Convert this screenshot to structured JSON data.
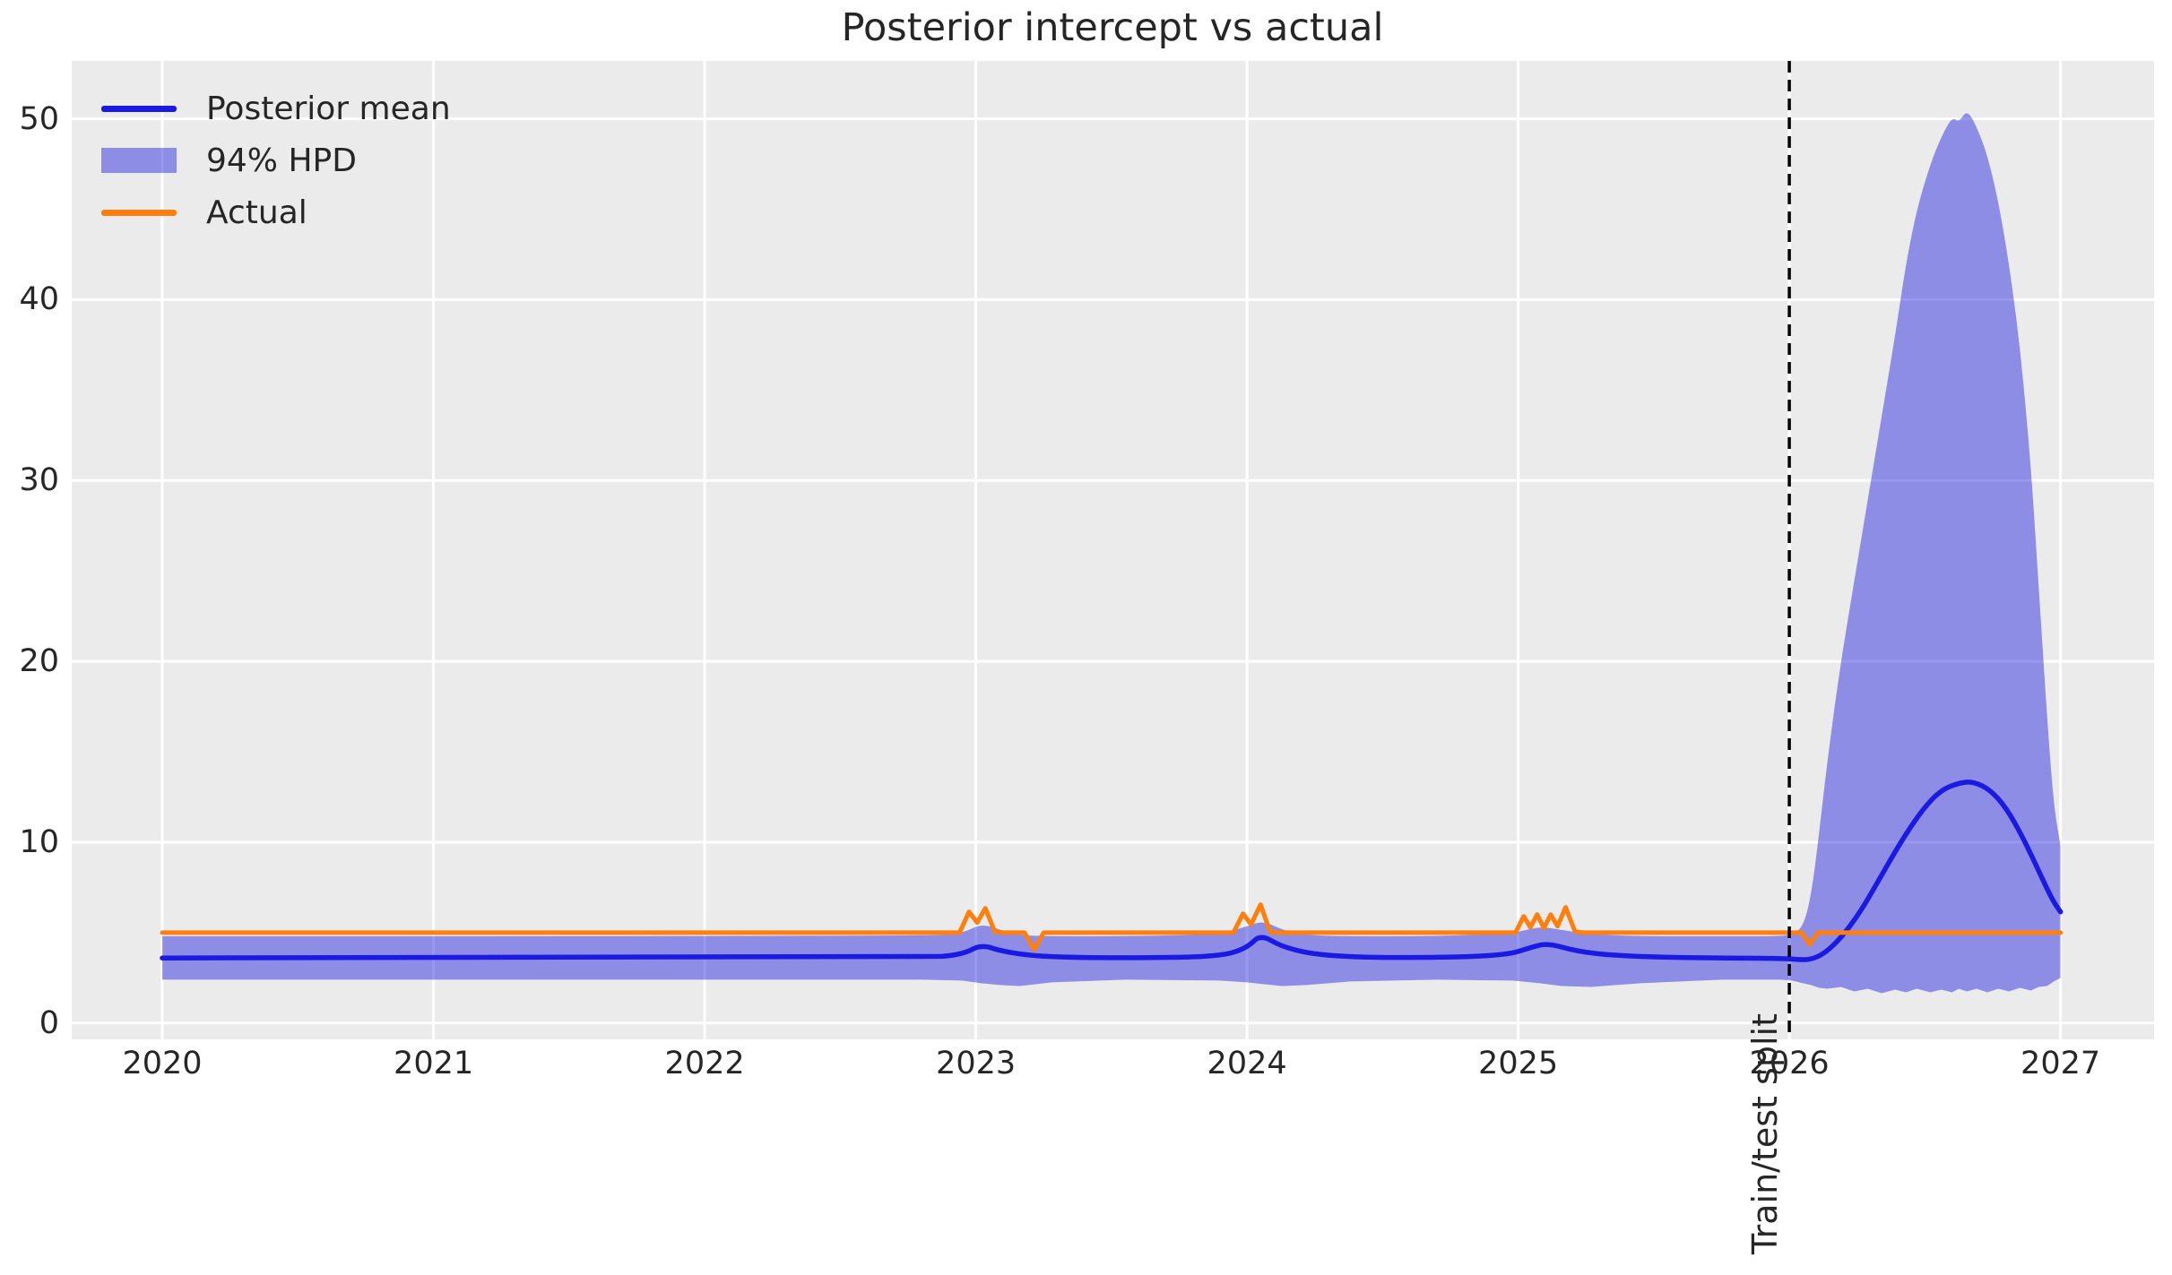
{
  "chart_data": {
    "type": "line",
    "title": "Posterior intercept vs actual",
    "xlabel": "",
    "ylabel": "",
    "x_ticks": [
      2020,
      2021,
      2022,
      2023,
      2024,
      2025,
      2026,
      2027
    ],
    "y_ticks": [
      0,
      10,
      20,
      30,
      40,
      50
    ],
    "xlim": [
      2019.666,
      2027.345
    ],
    "ylim": [
      -0.9,
      53.2
    ],
    "grid": true,
    "legend_position": "upper left",
    "colors": {
      "plot_bg": "#ebebeb",
      "grid": "#ffffff",
      "text": "#262626",
      "split_line": "#000000"
    },
    "legend": [
      {
        "label": "Posterior mean",
        "swatch": "line"
      },
      {
        "label": "94% HPD",
        "swatch": "patch"
      },
      {
        "label": "Actual",
        "swatch": "line"
      }
    ],
    "series": [
      {
        "name": "Posterior mean",
        "color": "#1a1ae0",
        "smooth": true,
        "width": 5.5,
        "points": [
          [
            2020.0,
            3.6
          ],
          [
            2022.8,
            3.6
          ],
          [
            2022.95,
            3.78
          ],
          [
            2023.02,
            4.35
          ],
          [
            2023.1,
            3.95
          ],
          [
            2023.25,
            3.65
          ],
          [
            2023.6,
            3.6
          ],
          [
            2023.9,
            3.68
          ],
          [
            2024.0,
            4.15
          ],
          [
            2024.05,
            4.92
          ],
          [
            2024.13,
            4.2
          ],
          [
            2024.28,
            3.7
          ],
          [
            2024.6,
            3.6
          ],
          [
            2024.95,
            3.72
          ],
          [
            2025.05,
            4.2
          ],
          [
            2025.11,
            4.42
          ],
          [
            2025.22,
            3.95
          ],
          [
            2025.38,
            3.7
          ],
          [
            2025.7,
            3.6
          ],
          [
            2025.98,
            3.58
          ],
          [
            2026.04,
            3.5
          ],
          [
            2026.08,
            3.52
          ],
          [
            2026.13,
            3.85
          ],
          [
            2026.19,
            4.7
          ],
          [
            2026.26,
            6.1
          ],
          [
            2026.33,
            7.9
          ],
          [
            2026.41,
            10.0
          ],
          [
            2026.49,
            11.8
          ],
          [
            2026.56,
            12.9
          ],
          [
            2026.63,
            13.3
          ],
          [
            2026.68,
            13.35
          ],
          [
            2026.74,
            12.9
          ],
          [
            2026.8,
            11.9
          ],
          [
            2026.86,
            10.3
          ],
          [
            2026.92,
            8.4
          ],
          [
            2026.97,
            6.8
          ],
          [
            2027.0,
            6.15
          ]
        ]
      },
      {
        "name": "Actual",
        "color": "#ff7f0e",
        "smooth": false,
        "width": 5,
        "points": [
          [
            2020.0,
            5
          ],
          [
            2022.94,
            5
          ],
          [
            2022.975,
            6.15
          ],
          [
            2023.005,
            5.55
          ],
          [
            2023.035,
            6.35
          ],
          [
            2023.07,
            5.05
          ],
          [
            2023.1,
            5
          ],
          [
            2023.18,
            5
          ],
          [
            2023.215,
            4.05
          ],
          [
            2023.25,
            5
          ],
          [
            2023.95,
            5
          ],
          [
            2023.985,
            6.05
          ],
          [
            2024.015,
            5.45
          ],
          [
            2024.05,
            6.55
          ],
          [
            2024.085,
            5.05
          ],
          [
            2024.11,
            5
          ],
          [
            2024.99,
            5
          ],
          [
            2025.02,
            5.9
          ],
          [
            2025.045,
            5.3
          ],
          [
            2025.07,
            6.0
          ],
          [
            2025.095,
            5.25
          ],
          [
            2025.12,
            6.0
          ],
          [
            2025.145,
            5.35
          ],
          [
            2025.175,
            6.4
          ],
          [
            2025.21,
            5.05
          ],
          [
            2025.24,
            5
          ],
          [
            2026.045,
            5
          ],
          [
            2026.075,
            4.35
          ],
          [
            2026.105,
            5
          ],
          [
            2027.0,
            5
          ]
        ]
      }
    ],
    "band": {
      "name": "94% HPD",
      "color": "#1a1ae0",
      "opacity": 0.45,
      "points": [
        [
          2020.0,
          2.4,
          4.8
        ],
        [
          2022.8,
          2.4,
          4.8
        ],
        [
          2022.95,
          2.35,
          4.95
        ],
        [
          2023.02,
          2.2,
          5.5
        ],
        [
          2023.09,
          2.1,
          5.15
        ],
        [
          2023.16,
          2.05,
          4.85
        ],
        [
          2023.28,
          2.25,
          4.8
        ],
        [
          2023.55,
          2.4,
          4.8
        ],
        [
          2023.9,
          2.35,
          4.9
        ],
        [
          2024.0,
          2.25,
          5.35
        ],
        [
          2024.06,
          2.15,
          5.65
        ],
        [
          2024.13,
          2.05,
          5.15
        ],
        [
          2024.22,
          2.1,
          4.85
        ],
        [
          2024.38,
          2.3,
          4.8
        ],
        [
          2024.7,
          2.4,
          4.8
        ],
        [
          2024.98,
          2.35,
          4.95
        ],
        [
          2025.08,
          2.2,
          5.35
        ],
        [
          2025.16,
          2.05,
          5.15
        ],
        [
          2025.27,
          2.0,
          4.9
        ],
        [
          2025.45,
          2.2,
          4.8
        ],
        [
          2025.75,
          2.4,
          4.8
        ],
        [
          2025.97,
          2.4,
          4.8
        ],
        [
          2026.01,
          2.35,
          4.9
        ],
        [
          2026.05,
          2.2,
          5.3
        ],
        [
          2026.08,
          2.1,
          7.0
        ],
        [
          2026.11,
          1.95,
          10.5
        ],
        [
          2026.14,
          1.9,
          14.5
        ],
        [
          2026.19,
          2.0,
          20.0
        ],
        [
          2026.24,
          1.75,
          24.5
        ],
        [
          2026.29,
          1.9,
          29.0
        ],
        [
          2026.34,
          1.65,
          33.5
        ],
        [
          2026.39,
          1.85,
          38.0
        ],
        [
          2026.43,
          1.7,
          42.0
        ],
        [
          2026.47,
          1.9,
          45.0
        ],
        [
          2026.52,
          1.7,
          47.5
        ],
        [
          2026.56,
          1.85,
          49.0
        ],
        [
          2026.6,
          1.7,
          50.1
        ],
        [
          2026.625,
          1.9,
          49.8
        ],
        [
          2026.655,
          1.75,
          50.5
        ],
        [
          2026.69,
          1.9,
          49.6
        ],
        [
          2026.73,
          1.7,
          48.0
        ],
        [
          2026.77,
          1.9,
          45.5
        ],
        [
          2026.81,
          1.75,
          42.0
        ],
        [
          2026.85,
          1.95,
          37.5
        ],
        [
          2026.89,
          1.8,
          31.0
        ],
        [
          2026.92,
          2.0,
          24.0
        ],
        [
          2026.95,
          2.05,
          17.0
        ],
        [
          2026.975,
          2.3,
          12.0
        ],
        [
          2027.0,
          2.5,
          9.8
        ]
      ]
    },
    "vline": {
      "x": 2026.0,
      "label": "Train/test split",
      "style": "dashed",
      "color": "#000000"
    }
  }
}
